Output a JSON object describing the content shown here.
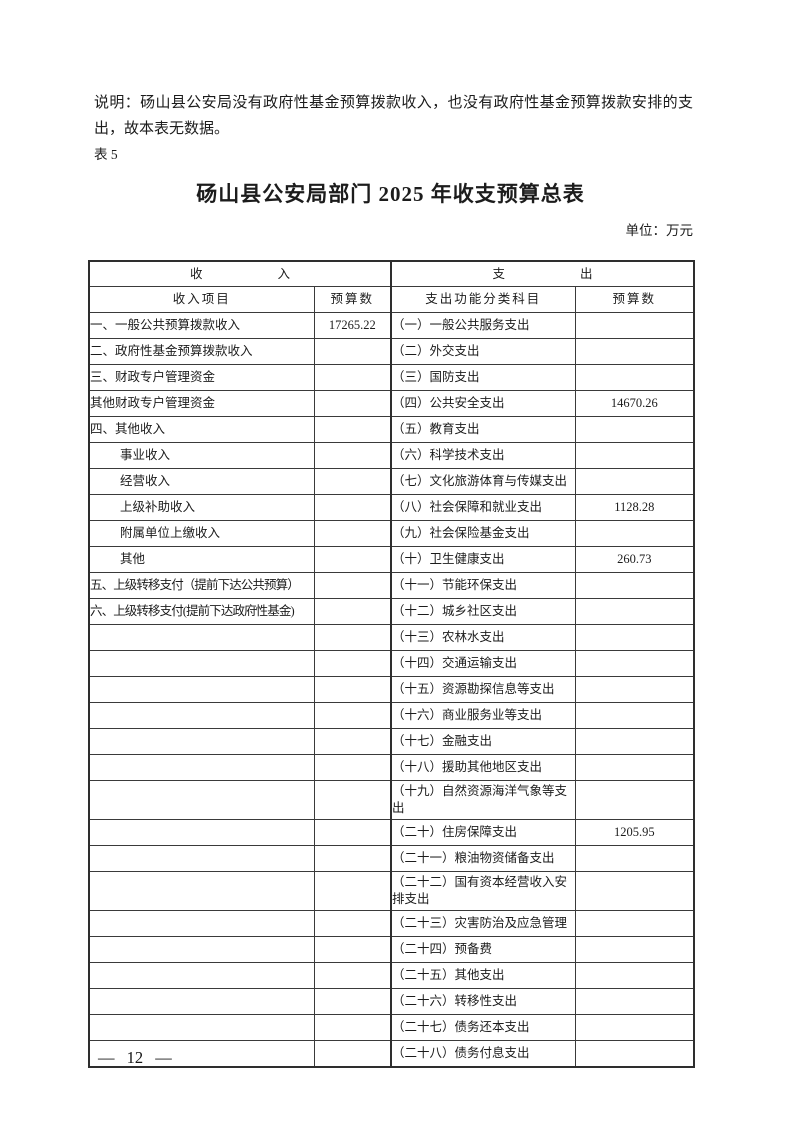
{
  "page": {
    "note": "说明：砀山县公安局没有政府性基金预算拨款收入，也没有政府性基金预算拨款安排的支出，故本表无数据。",
    "table_label": "表 5",
    "title": "砀山县公安局部门 2025 年收支预算总表",
    "unit_label": "单位：万元",
    "page_number": "— 12 —"
  },
  "table": {
    "section_headers": {
      "income": "收　　　　　　入",
      "expense": "支　　　　　　出"
    },
    "columns": [
      "收入项目",
      "预算数",
      "支出功能分类科目",
      "预算数"
    ],
    "rows": [
      {
        "income": "一、一般公共预算拨款收入",
        "income_value": "17265.22",
        "expense": "（一）一般公共服务支出",
        "expense_value": ""
      },
      {
        "income": "二、政府性基金预算拨款收入",
        "income_value": "",
        "expense": "（二）外交支出",
        "expense_value": ""
      },
      {
        "income": "三、财政专户管理资金",
        "income_value": "",
        "expense": "（三）国防支出",
        "expense_value": ""
      },
      {
        "income": "其他财政专户管理资金",
        "income_value": "",
        "expense": "（四）公共安全支出",
        "expense_value": "14670.26"
      },
      {
        "income": "四、其他收入",
        "income_value": "",
        "expense": "（五）教育支出",
        "expense_value": ""
      },
      {
        "income": "事业收入",
        "indent": true,
        "income_value": "",
        "expense": "（六）科学技术支出",
        "expense_value": ""
      },
      {
        "income": "经营收入",
        "indent": true,
        "income_value": "",
        "expense": "（七）文化旅游体育与传媒支出",
        "expense_value": ""
      },
      {
        "income": "上级补助收入",
        "indent": true,
        "income_value": "",
        "expense": "（八）社会保障和就业支出",
        "expense_value": "1128.28"
      },
      {
        "income": "附属单位上缴收入",
        "indent": true,
        "income_value": "",
        "expense": "（九）社会保险基金支出",
        "expense_value": ""
      },
      {
        "income": "其他",
        "indent": true,
        "income_value": "",
        "expense": "（十）卫生健康支出",
        "expense_value": "260.73"
      },
      {
        "income": "五、上级转移支付（提前下达公共预算）",
        "tight": true,
        "income_value": "",
        "expense": "（十一）节能环保支出",
        "expense_value": ""
      },
      {
        "income": "六、上级转移支付(提前下达政府性基金)",
        "tight": true,
        "income_value": "",
        "expense": "（十二）城乡社区支出",
        "expense_value": ""
      },
      {
        "income": "",
        "income_value": "",
        "expense": "（十三）农林水支出",
        "expense_value": ""
      },
      {
        "income": "",
        "income_value": "",
        "expense": "（十四）交通运输支出",
        "expense_value": ""
      },
      {
        "income": "",
        "income_value": "",
        "expense": "（十五）资源勘探信息等支出",
        "expense_value": ""
      },
      {
        "income": "",
        "income_value": "",
        "expense": "（十六）商业服务业等支出",
        "expense_value": ""
      },
      {
        "income": "",
        "income_value": "",
        "expense": "（十七）金融支出",
        "expense_value": ""
      },
      {
        "income": "",
        "income_value": "",
        "expense": "（十八）援助其他地区支出",
        "expense_value": ""
      },
      {
        "income": "",
        "income_value": "",
        "expense": "（十九）自然资源海洋气象等支出",
        "expense_value": ""
      },
      {
        "income": "",
        "income_value": "",
        "expense": "（二十）住房保障支出",
        "expense_value": "1205.95"
      },
      {
        "income": "",
        "income_value": "",
        "expense": "（二十一）粮油物资储备支出",
        "expense_value": ""
      },
      {
        "income": "",
        "income_value": "",
        "expense": "（二十二）国有资本经营收入安排支出",
        "expense_value": ""
      },
      {
        "income": "",
        "income_value": "",
        "expense": "（二十三）灾害防治及应急管理",
        "expense_value": ""
      },
      {
        "income": "",
        "income_value": "",
        "expense": "（二十四）预备费",
        "expense_value": ""
      },
      {
        "income": "",
        "income_value": "",
        "expense": "（二十五）其他支出",
        "expense_value": ""
      },
      {
        "income": "",
        "income_value": "",
        "expense": "（二十六）转移性支出",
        "expense_value": ""
      },
      {
        "income": "",
        "income_value": "",
        "expense": "（二十七）债务还本支出",
        "expense_value": ""
      },
      {
        "income": "",
        "income_value": "",
        "expense": "（二十八）债务付息支出",
        "expense_value": ""
      }
    ]
  }
}
